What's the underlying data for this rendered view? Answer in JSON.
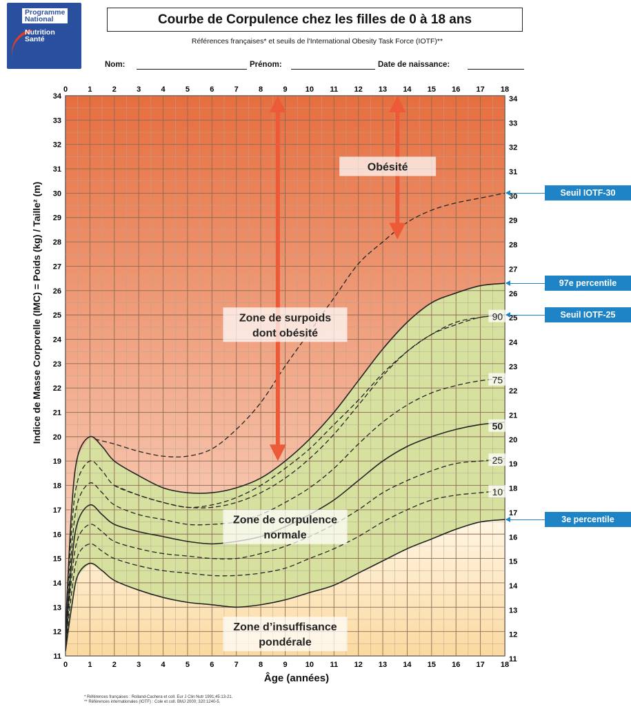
{
  "logo": {
    "line1": "Programme National",
    "line2": "Nutrition Santé"
  },
  "header": {
    "title": "Courbe de Corpulence chez les filles de 0 à 18 ans",
    "subtitle": "Références françaises* et seuils de l'International Obesity Task Force (IOTF)**",
    "nom_label": "Nom:",
    "prenom_label": "Prénom:",
    "dob_label": "Date de naissance:"
  },
  "footnotes": [
    "* Références françaises : Rolland-Cachera et coll. Eur J Clin Nutr 1991;45:13-21.",
    "** Références internationales (IOTF) : Cole et coll. BMJ 2000; 320:1240-5."
  ],
  "colors": {
    "obesity_top": "#e66e3f",
    "obesity_bottom": "#fbe2d2",
    "normal_zone": "#d7e19f",
    "under_zone": "#fde6b5",
    "arrow": "#ec5a37",
    "tag_blue": "#1e84c6"
  },
  "chart_data": {
    "type": "line",
    "xlabel": "Âge (années)",
    "ylabel": "Indice de Masse Corporelle (IMC) = Poids (kg) / Taille² (m)",
    "xlim": [
      0,
      18
    ],
    "ylim": [
      11,
      34
    ],
    "x_ticks": [
      0,
      1,
      2,
      3,
      4,
      5,
      6,
      7,
      8,
      9,
      10,
      11,
      12,
      13,
      14,
      15,
      16,
      17,
      18
    ],
    "y_ticks": [
      11,
      12,
      13,
      14,
      15,
      16,
      17,
      18,
      19,
      20,
      21,
      22,
      23,
      24,
      25,
      26,
      27,
      28,
      29,
      30,
      31,
      32,
      33,
      34
    ],
    "grid": true,
    "x": [
      0,
      0.25,
      0.5,
      1,
      1.5,
      2,
      3,
      4,
      5,
      6,
      7,
      8,
      9,
      10,
      11,
      12,
      13,
      14,
      15,
      16,
      17,
      18
    ],
    "series": [
      {
        "name": "97e percentile",
        "style": "solid",
        "values": [
          12.1,
          17.0,
          19.2,
          20.0,
          19.6,
          19.0,
          18.4,
          17.9,
          17.7,
          17.7,
          17.9,
          18.3,
          19.0,
          19.9,
          21.0,
          22.3,
          23.6,
          24.7,
          25.5,
          25.9,
          26.2,
          26.3
        ]
      },
      {
        "name": "90",
        "style": "dashed",
        "values": [
          11.9,
          16.2,
          18.2,
          19.0,
          18.6,
          18.0,
          17.6,
          17.3,
          17.1,
          17.1,
          17.3,
          17.7,
          18.3,
          19.1,
          20.1,
          21.3,
          22.5,
          23.5,
          24.2,
          24.6,
          24.9,
          25.0
        ]
      },
      {
        "name": "75",
        "style": "dashed",
        "values": [
          11.7,
          15.4,
          17.3,
          18.1,
          17.7,
          17.2,
          16.8,
          16.6,
          16.4,
          16.4,
          16.5,
          16.8,
          17.3,
          17.9,
          18.7,
          19.7,
          20.6,
          21.3,
          21.8,
          22.1,
          22.3,
          22.4
        ]
      },
      {
        "name": "50",
        "style": "solid",
        "values": [
          11.5,
          14.8,
          16.5,
          17.2,
          16.8,
          16.4,
          16.1,
          15.9,
          15.7,
          15.6,
          15.7,
          15.9,
          16.3,
          16.8,
          17.4,
          18.2,
          19.0,
          19.6,
          20.0,
          20.3,
          20.5,
          20.6
        ]
      },
      {
        "name": "25",
        "style": "dashed",
        "values": [
          11.4,
          14.2,
          15.8,
          16.4,
          16.1,
          15.7,
          15.4,
          15.2,
          15.1,
          15.0,
          15.0,
          15.2,
          15.5,
          15.9,
          16.4,
          17.0,
          17.7,
          18.2,
          18.6,
          18.9,
          19.0,
          19.1
        ]
      },
      {
        "name": "10",
        "style": "dashed",
        "values": [
          11.3,
          13.6,
          15.1,
          15.6,
          15.3,
          15.0,
          14.7,
          14.5,
          14.4,
          14.3,
          14.3,
          14.4,
          14.6,
          15.0,
          15.4,
          15.9,
          16.5,
          17.0,
          17.4,
          17.6,
          17.7,
          17.8
        ]
      },
      {
        "name": "3e percentile",
        "style": "solid",
        "values": [
          11.2,
          13.0,
          14.3,
          14.8,
          14.5,
          14.1,
          13.7,
          13.4,
          13.2,
          13.1,
          13.0,
          13.1,
          13.3,
          13.6,
          13.9,
          14.4,
          14.9,
          15.4,
          15.8,
          16.2,
          16.5,
          16.6
        ]
      },
      {
        "name": "Seuil IOTF-25",
        "style": "dashed",
        "x": [
          2,
          3,
          4,
          5,
          6,
          7,
          8,
          9,
          10,
          11,
          12,
          13,
          14,
          15,
          16,
          17,
          18
        ],
        "values": [
          18.0,
          17.6,
          17.3,
          17.1,
          17.2,
          17.5,
          18.0,
          18.7,
          19.5,
          20.5,
          21.5,
          22.6,
          23.5,
          24.2,
          24.7,
          24.9,
          25.0
        ]
      },
      {
        "name": "Seuil IOTF-30",
        "style": "dashed",
        "x": [
          1.2,
          2,
          3,
          4,
          5,
          6,
          7,
          8,
          9,
          10,
          11,
          12,
          13,
          14,
          15,
          16,
          17,
          18
        ],
        "values": [
          19.9,
          19.7,
          19.4,
          19.2,
          19.2,
          19.5,
          20.3,
          21.4,
          22.9,
          24.3,
          25.7,
          27.1,
          28.0,
          28.8,
          29.3,
          29.6,
          29.8,
          30.0
        ]
      }
    ],
    "curve_labels": [
      {
        "text": "90",
        "x": 17.7,
        "y": 24.9
      },
      {
        "text": "75",
        "x": 17.7,
        "y": 22.3
      },
      {
        "text": "50",
        "x": 17.7,
        "y": 20.4
      },
      {
        "text": "25",
        "x": 17.7,
        "y": 19.0
      },
      {
        "text": "10",
        "x": 17.7,
        "y": 17.7
      }
    ],
    "zones": [
      {
        "label": "Obésité",
        "x": 13.2,
        "y": 31.1
      },
      {
        "label": "Zone de surpoids dont obésité",
        "x": 9.0,
        "y": 24.6
      },
      {
        "label": "Zone de corpulence normale",
        "x": 9.0,
        "y": 16.3
      },
      {
        "label": "Zone d'insuffisance pondérale",
        "x": 9.0,
        "y": 11.9
      }
    ],
    "arrows": [
      {
        "x": 8.7,
        "y_from": 19.0,
        "y_to": 34.0
      },
      {
        "x": 13.6,
        "y_from": 28.1,
        "y_to": 34.0
      }
    ],
    "side_tags": [
      {
        "text": "Seuil IOTF-30",
        "y": 30.0
      },
      {
        "text": "97e percentile",
        "y": 26.3
      },
      {
        "text": "Seuil IOTF-25",
        "y": 25.0
      },
      {
        "text": "3e percentile",
        "y": 16.6
      }
    ]
  }
}
